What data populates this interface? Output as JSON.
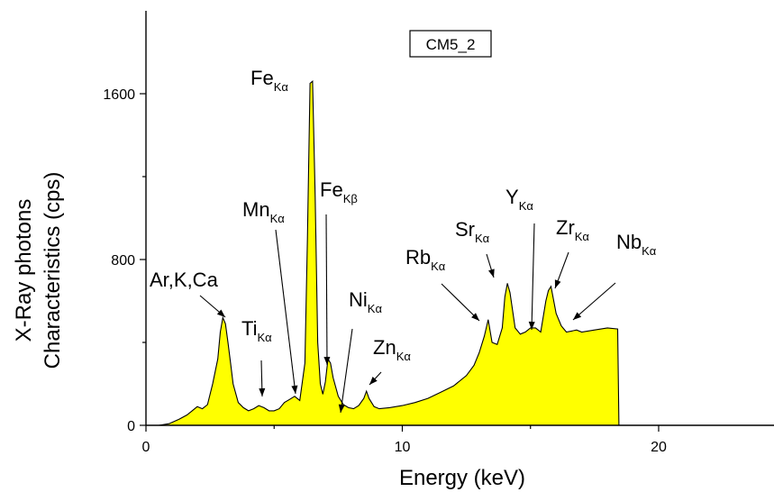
{
  "chart_data": {
    "type": "area",
    "title": "",
    "legend": "CM5_2",
    "legend_position": "top-center",
    "xlabel": "Energy (keV)",
    "ylabel_lines": [
      "X-Ray photons",
      "Characteristics (cps)"
    ],
    "xlim": [
      0,
      24.5
    ],
    "ylim": [
      0,
      2000
    ],
    "xticks": [
      0,
      10,
      20
    ],
    "yticks": [
      0,
      800,
      1600
    ],
    "grid": false,
    "fill_color": "#ffff00",
    "line_color": "#000000",
    "x": [
      0.5,
      0.9,
      1.3,
      1.6,
      1.8,
      2.0,
      2.2,
      2.4,
      2.6,
      2.8,
      2.9,
      3.0,
      3.1,
      3.2,
      3.3,
      3.4,
      3.6,
      3.8,
      4.0,
      4.2,
      4.4,
      4.6,
      4.8,
      5.0,
      5.2,
      5.4,
      5.6,
      5.8,
      6.0,
      6.2,
      6.3,
      6.4,
      6.5,
      6.6,
      6.7,
      6.8,
      6.9,
      7.0,
      7.1,
      7.2,
      7.3,
      7.5,
      7.7,
      7.9,
      8.1,
      8.3,
      8.5,
      8.6,
      8.7,
      8.9,
      9.1,
      9.5,
      10.0,
      10.5,
      11.0,
      11.5,
      12.0,
      12.5,
      12.8,
      13.0,
      13.2,
      13.35,
      13.5,
      13.7,
      13.9,
      14.0,
      14.1,
      14.2,
      14.4,
      14.6,
      14.8,
      15.0,
      15.2,
      15.4,
      15.6,
      15.7,
      15.8,
      16.0,
      16.2,
      16.4,
      16.6,
      16.8,
      17.0,
      17.5,
      18.0,
      18.4,
      18.45
    ],
    "y": [
      0,
      8,
      30,
      50,
      70,
      90,
      80,
      100,
      200,
      320,
      450,
      520,
      490,
      400,
      300,
      200,
      110,
      85,
      70,
      80,
      95,
      85,
      70,
      70,
      80,
      110,
      125,
      140,
      120,
      300,
      900,
      1650,
      1660,
      1100,
      400,
      200,
      150,
      210,
      320,
      300,
      230,
      140,
      100,
      85,
      80,
      95,
      130,
      165,
      130,
      90,
      80,
      85,
      95,
      110,
      130,
      160,
      190,
      240,
      290,
      350,
      430,
      510,
      400,
      390,
      470,
      620,
      685,
      640,
      470,
      440,
      450,
      470,
      470,
      450,
      600,
      650,
      670,
      540,
      480,
      450,
      455,
      460,
      450,
      460,
      470,
      465,
      0
    ],
    "annotations": [
      {
        "main": "Ar,K,Ca",
        "sub": ""
      },
      {
        "main": "Ti",
        "sub": "Kα"
      },
      {
        "main": "Mn",
        "sub": "Kα"
      },
      {
        "main": "Fe",
        "sub": "Kα"
      },
      {
        "main": "Fe",
        "sub": "Kβ"
      },
      {
        "main": "Ni",
        "sub": "Kα"
      },
      {
        "main": "Zn",
        "sub": "Kα"
      },
      {
        "main": "Rb",
        "sub": "Kα"
      },
      {
        "main": "Sr",
        "sub": "Kα"
      },
      {
        "main": "Y",
        "sub": "Kα"
      },
      {
        "main": "Zr",
        "sub": "Kα"
      },
      {
        "main": "Nb",
        "sub": "Kα"
      }
    ]
  }
}
